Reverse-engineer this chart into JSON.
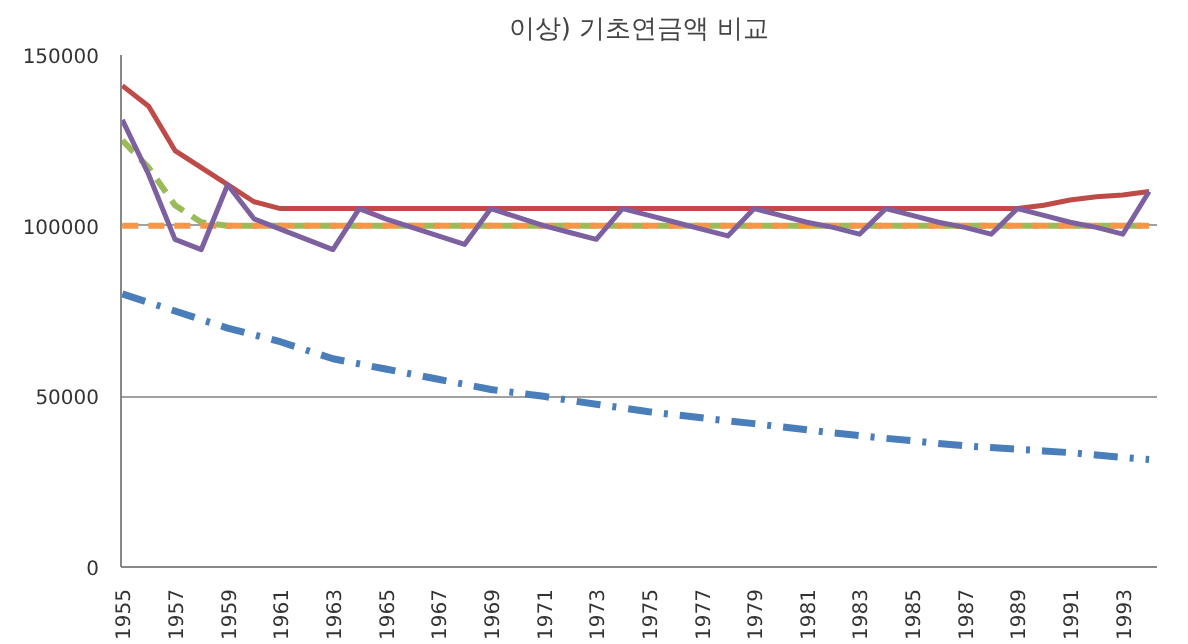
{
  "chart_data": {
    "type": "line",
    "title": "이상) 기초연금액 비교",
    "categories": [
      "1955",
      null,
      "1957",
      null,
      "1959",
      null,
      "1961",
      null,
      "1963",
      null,
      "1965",
      null,
      "1967",
      null,
      "1969",
      null,
      "1971",
      null,
      "1973",
      null,
      "1975",
      null,
      "1977",
      null,
      "1979",
      null,
      "1981",
      null,
      "1983",
      null,
      "1985",
      null,
      "1987",
      null,
      "1989",
      null,
      "1991",
      null,
      "1993",
      null
    ],
    "series": [
      {
        "color": "#be4b48",
        "line_style": "solid",
        "values": [
          141000,
          135000,
          122000,
          117000,
          112000,
          107000,
          105000,
          105000,
          105000,
          105000,
          105000,
          105000,
          105000,
          105000,
          105000,
          105000,
          105000,
          105000,
          105000,
          105000,
          105000,
          105000,
          105000,
          105000,
          105000,
          105000,
          105000,
          105000,
          105000,
          105000,
          105000,
          105000,
          105000,
          105000,
          105000,
          106000,
          107500,
          108500,
          109000,
          110000
        ]
      },
      {
        "color": "#9bbb59",
        "line_style": "dashed",
        "values": [
          125000,
          117000,
          106000,
          101000,
          100000,
          100000,
          100000,
          100000,
          100000,
          100000,
          100000,
          100000,
          100000,
          100000,
          100000,
          100000,
          100000,
          100000,
          100000,
          100000,
          100000,
          100000,
          100000,
          100000,
          100000,
          100000,
          100000,
          100000,
          100000,
          100000,
          100000,
          100000,
          100000,
          100000,
          100000,
          100000,
          100000,
          100000,
          100000,
          100000
        ]
      },
      {
        "color": "#f79646",
        "line_style": "dashed",
        "values": [
          100000,
          100000,
          100000,
          100000,
          100000,
          100000,
          100000,
          100000,
          100000,
          100000,
          100000,
          100000,
          100000,
          100000,
          100000,
          100000,
          100000,
          100000,
          100000,
          100000,
          100000,
          100000,
          100000,
          100000,
          100000,
          100000,
          100000,
          100000,
          100000,
          100000,
          100000,
          100000,
          100000,
          100000,
          100000,
          100000,
          100000,
          100000,
          100000,
          100000
        ]
      },
      {
        "color": "#7d60a0",
        "line_style": "solid",
        "values": [
          131000,
          115000,
          96000,
          93000,
          112000,
          102000,
          99000,
          96000,
          93000,
          105000,
          102000,
          99500,
          97000,
          94500,
          105000,
          102500,
          100000,
          98000,
          96000,
          105000,
          103000,
          101000,
          99000,
          97000,
          105000,
          103000,
          101000,
          99500,
          97500,
          105000,
          103000,
          101000,
          99500,
          97500,
          105000,
          103000,
          101000,
          99500,
          97500,
          110000
        ]
      },
      {
        "color": "#4a7ebb",
        "line_style": "dashdot",
        "values": [
          80000,
          77500,
          75000,
          72500,
          70000,
          68000,
          66000,
          63500,
          61000,
          59500,
          58000,
          56500,
          55000,
          53500,
          52000,
          51000,
          50000,
          48800,
          47700,
          46600,
          45500,
          44600,
          43700,
          42800,
          42000,
          41100,
          40200,
          39300,
          38500,
          37700,
          37000,
          36200,
          35500,
          35000,
          34500,
          34000,
          33500,
          32800,
          32100,
          31500
        ]
      }
    ],
    "ylim": [
      0,
      150000
    ],
    "yticks": [
      0,
      50000,
      100000,
      150000
    ],
    "grid": "y",
    "marker": "none"
  }
}
